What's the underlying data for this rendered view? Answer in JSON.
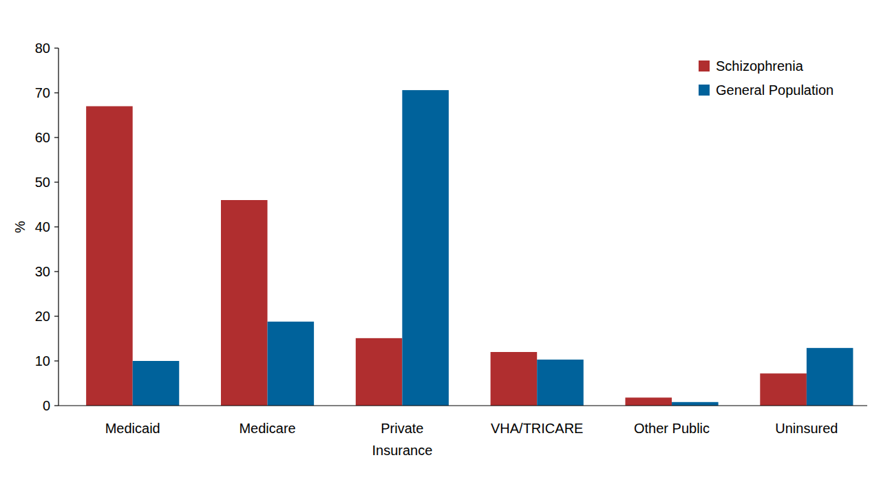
{
  "chart_data": {
    "type": "bar",
    "y_label": "%",
    "categories": [
      "Medicaid",
      "Medicare",
      "Private Insurance",
      "VHA/TRICARE",
      "Other Public",
      "Uninsured"
    ],
    "series": [
      {
        "name": "Schizophrenia",
        "color": "#b02e2f",
        "values": [
          67,
          46,
          15.1,
          12,
          1.8,
          7.2
        ]
      },
      {
        "name": "General Population",
        "color": "#00629b",
        "values": [
          10,
          18.8,
          70.6,
          10.3,
          0.8,
          12.9
        ]
      }
    ],
    "ylim": [
      0,
      80
    ],
    "yticks": [
      0,
      10,
      20,
      30,
      40,
      50,
      60,
      70,
      80
    ],
    "grid": false,
    "legend": "top-right"
  }
}
